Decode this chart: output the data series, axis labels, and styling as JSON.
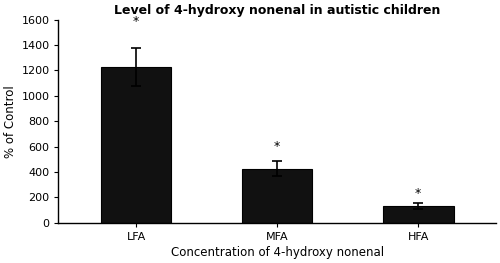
{
  "categories": [
    "LFA",
    "MFA",
    "HFA"
  ],
  "values": [
    1225,
    425,
    130
  ],
  "errors": [
    150,
    60,
    22
  ],
  "bar_color": "#111111",
  "bar_edgecolor": "#000000",
  "title": "Level of 4-hydroxy nonenal in autistic children",
  "xlabel": "Concentration of 4-hydroxy nonenal",
  "ylabel": "% of Control",
  "ylim": [
    0,
    1600
  ],
  "yticks": [
    0,
    200,
    400,
    600,
    800,
    1000,
    1200,
    1400,
    1600
  ],
  "title_fontsize": 9,
  "axis_label_fontsize": 8.5,
  "tick_fontsize": 8,
  "bar_width": 0.5,
  "asterisk_fontsize": 9,
  "asterisk_offsets": [
    160,
    65,
    25
  ]
}
